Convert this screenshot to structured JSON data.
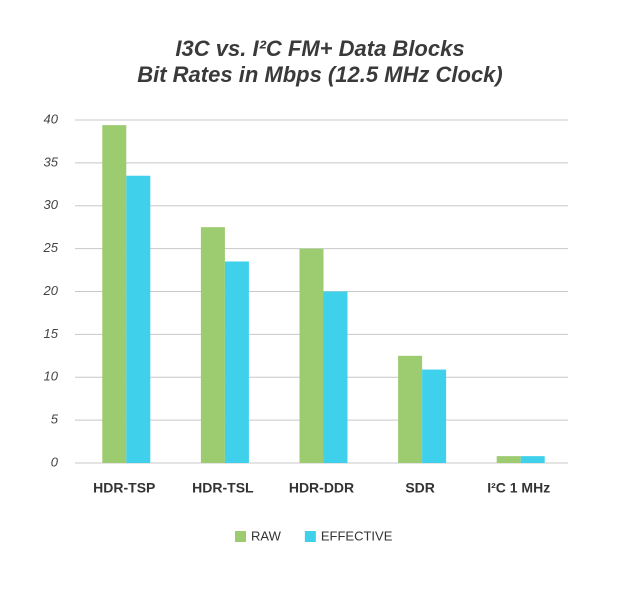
{
  "chart_data": {
    "type": "bar",
    "title": "I3C vs. I²C FM+ Data Blocks",
    "subtitle": "Bit Rates in Mbps (12.5 MHz Clock)",
    "categories": [
      "HDR-TSP",
      "HDR-TSL",
      "HDR-DDR",
      "SDR",
      "I²C 1 MHz"
    ],
    "series": [
      {
        "name": "RAW",
        "color": "#9dcb6f",
        "values": [
          39.4,
          27.5,
          25,
          12.5,
          0.8
        ]
      },
      {
        "name": "EFFECTIVE",
        "color": "#3fd0ec",
        "values": [
          33.5,
          23.5,
          20,
          10.9,
          0.8
        ]
      }
    ],
    "ylim": [
      0,
      40
    ],
    "yticks": [
      0,
      5,
      10,
      15,
      20,
      25,
      30,
      35,
      40
    ],
    "grid": true,
    "legend": "bottom"
  }
}
